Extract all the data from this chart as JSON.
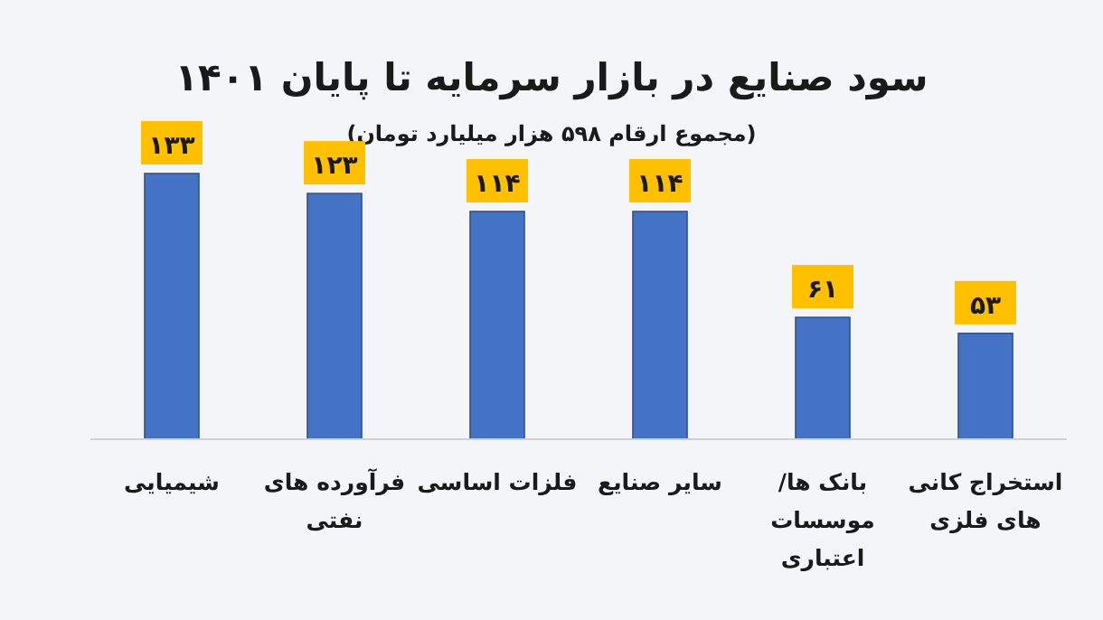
{
  "chart_data": {
    "type": "bar",
    "title": "سود صنایع در بازار سرمایه تا پایان ۱۴۰۱",
    "subtitle": "(مجموع ارقام ۵۹۸ هزار میلیارد تومان)",
    "categories": [
      "شیمیایی",
      "فرآورده های نفتی",
      "فلزات اساسی",
      "سایر صنایع",
      "بانک ها/ موسسات اعتباری",
      "استخراج کانی های فلزی"
    ],
    "series": [
      {
        "color": "#4472c4",
        "values": [
          133,
          123,
          114,
          114,
          61,
          53
        ],
        "value_labels": [
          "۱۳۳",
          "۱۲۳",
          "۱۱۴",
          "۱۱۴",
          "۶۱",
          "۵۳"
        ]
      }
    ]
  }
}
